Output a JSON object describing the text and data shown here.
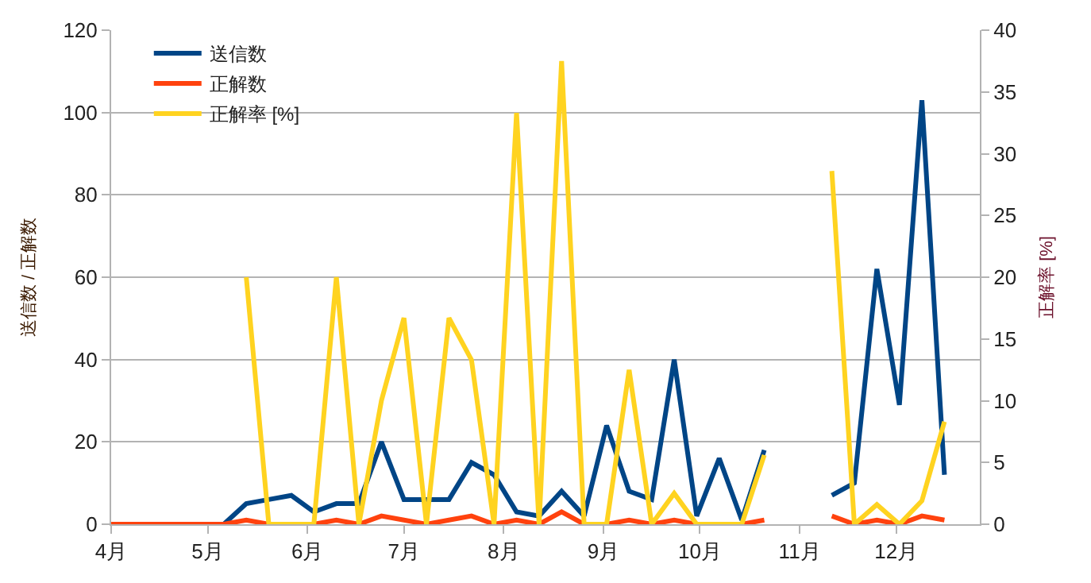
{
  "chart_data": {
    "type": "line",
    "x": [
      "--04-01",
      "--04-08",
      "--04-15",
      "--04-22",
      "--04-29",
      "--05-06",
      "--05-13",
      "--05-20",
      "--05-27",
      "--06-03",
      "--06-10",
      "--06-17",
      "--06-24",
      "--07-01",
      "--07-08",
      "--07-15",
      "--07-22",
      "--07-29",
      "--08-05",
      "--08-12",
      "--08-19",
      "--08-26",
      "--09-02",
      "--09-09",
      "--09-16",
      "--09-23",
      "--09-30",
      "--10-07",
      "--10-14",
      "--10-21",
      "--10-28",
      "--11-04",
      "--11-11",
      "--11-18",
      "--11-25",
      "--12-02",
      "--12-09",
      "--12-16"
    ],
    "series": [
      {
        "name": "送信数",
        "color": "#004586",
        "values": [
          null,
          null,
          null,
          null,
          null,
          0,
          5,
          6,
          7,
          3,
          5,
          5,
          20,
          6,
          6,
          6,
          15,
          12,
          3,
          2,
          8,
          2,
          24,
          8,
          6,
          40,
          2,
          16,
          1,
          18,
          null,
          null,
          7,
          10,
          62,
          29,
          103,
          12
        ]
      },
      {
        "name": "正解数",
        "color": "#ff420e",
        "values": [
          0,
          0,
          0,
          0,
          0,
          0,
          1,
          0,
          0,
          0,
          1,
          0,
          2,
          1,
          0,
          1,
          2,
          0,
          1,
          0,
          3,
          0,
          0,
          1,
          0,
          1,
          0,
          0,
          0,
          1,
          null,
          null,
          2,
          0,
          1,
          0,
          2,
          1
        ]
      },
      {
        "name": "正解率 [%]",
        "color": "#ffd320",
        "axis": "y2",
        "values": [
          null,
          null,
          null,
          null,
          null,
          null,
          20,
          0,
          0,
          0,
          20,
          0,
          10,
          16.7,
          0,
          16.7,
          13.3,
          0,
          33.3,
          0,
          37.5,
          0,
          0,
          12.5,
          0,
          2.5,
          0,
          0,
          0,
          5.6,
          null,
          null,
          28.6,
          0,
          1.6,
          0,
          1.9,
          8.3
        ]
      }
    ],
    "ylabel": "送信数 / 正解数",
    "y2label": "正解率 [%]",
    "xlim": [
      "--04-01",
      "--12-27"
    ],
    "xticks": [
      {
        "value": "--04-01",
        "label": "4月"
      },
      {
        "value": "--05-01",
        "label": "5月"
      },
      {
        "value": "--06-01",
        "label": "6月"
      },
      {
        "value": "--07-01",
        "label": "7月"
      },
      {
        "value": "--08-01",
        "label": "8月"
      },
      {
        "value": "--09-01",
        "label": "9月"
      },
      {
        "value": "--10-01",
        "label": "10月"
      },
      {
        "value": "--11-01",
        "label": "11月"
      },
      {
        "value": "--12-01",
        "label": "12月"
      }
    ],
    "ylim": [
      0,
      120
    ],
    "yticks": [
      0,
      20,
      40,
      60,
      80,
      100,
      120
    ],
    "y2lim": [
      0,
      40
    ],
    "y2ticks": [
      0,
      5,
      10,
      15,
      20,
      25,
      30,
      35,
      40
    ],
    "grid": "y",
    "legend": "top left",
    "marker": "none",
    "line_style": "solid"
  }
}
